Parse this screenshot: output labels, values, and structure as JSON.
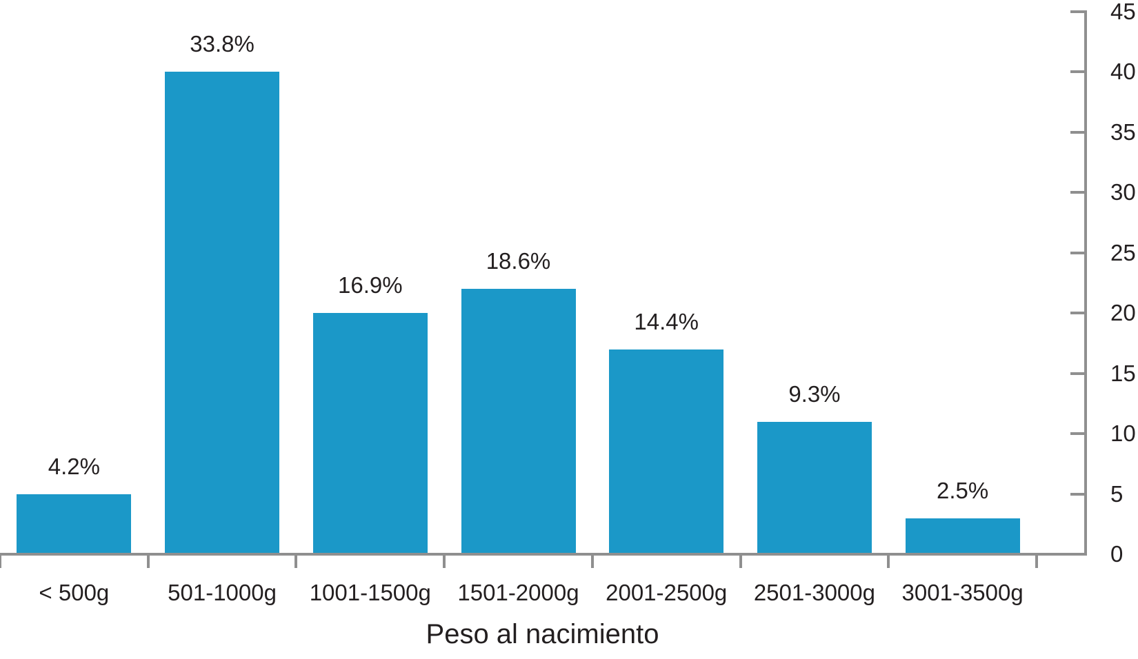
{
  "chart_data": {
    "type": "bar",
    "title": "",
    "xlabel": "Peso al nacimiento",
    "ylabel": "",
    "categories": [
      "< 500g",
      "501-1000g",
      "1001-1500g",
      "1501-2000g",
      "2001-2500g",
      "2501-3000g",
      "3001-3500g"
    ],
    "values": [
      5,
      40,
      20,
      22,
      17,
      11,
      3
    ],
    "bar_labels": [
      "4.2%",
      "33.8%",
      "16.9%",
      "18.6%",
      "14.4%",
      "9.3%",
      "2.5%"
    ],
    "ylim": [
      0,
      45
    ],
    "yticks": [
      0,
      5,
      10,
      15,
      20,
      25,
      30,
      35,
      40,
      45
    ],
    "yaxis_side": "right",
    "grid": false,
    "legend": null,
    "colors": {
      "bar": "#1b98c8",
      "axis": "#8f8f8f",
      "text": "#231f20"
    }
  }
}
